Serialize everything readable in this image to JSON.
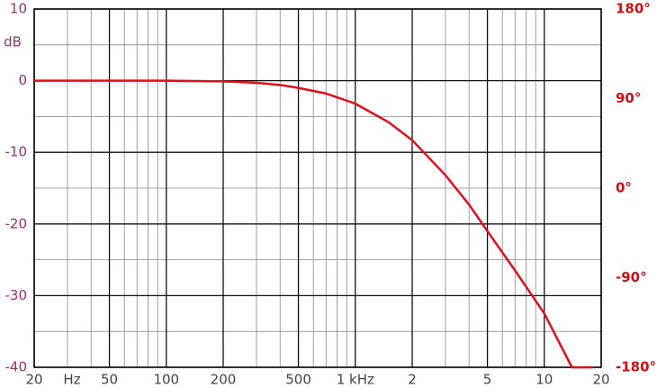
{
  "chart_data": {
    "type": "line",
    "y_label": "dB",
    "x_unit_label": "Hz",
    "x": [
      20,
      50,
      100,
      200,
      300,
      400,
      500,
      700,
      1000,
      1500,
      2000,
      3000,
      4000,
      5000,
      7000,
      10000,
      14000,
      18000
    ],
    "values": [
      0,
      0,
      0,
      -0.1,
      -0.3,
      -0.6,
      -1.0,
      -1.8,
      -3.2,
      -5.8,
      -8.3,
      -13.2,
      -17.3,
      -21.0,
      -26.5,
      -32.5,
      -40,
      -40
    ],
    "color": "#e0101a",
    "xscale": "log",
    "xlim": [
      20,
      20000
    ],
    "xticks": [
      20,
      50,
      100,
      200,
      500,
      {
        "value": 1000,
        "label": "1 kHz"
      },
      {
        "value": 2000,
        "label": "2"
      },
      {
        "value": 5000,
        "label": "5"
      },
      {
        "value": 10000,
        "label": "10"
      },
      {
        "value": 20000,
        "label": "20"
      }
    ],
    "minor_xticks": [
      30,
      40,
      60,
      70,
      80,
      90,
      300,
      400,
      600,
      700,
      800,
      900,
      3000,
      4000,
      6000,
      7000,
      8000,
      9000
    ],
    "ylim": [
      -40,
      10
    ],
    "yticks": [
      10,
      0,
      -10,
      -20,
      -30,
      -40
    ],
    "minor_yticks": [
      5,
      -5,
      -15,
      -25,
      -35
    ],
    "y2lim": [
      -180,
      180
    ],
    "y2ticks": [
      {
        "value": 180,
        "label": "180°"
      },
      {
        "value": 90,
        "label": "90°"
      },
      {
        "value": 0,
        "label": "0°"
      },
      {
        "value": -90,
        "label": "-90°"
      },
      {
        "value": -180,
        "label": "-180°"
      }
    ],
    "grid": true
  }
}
